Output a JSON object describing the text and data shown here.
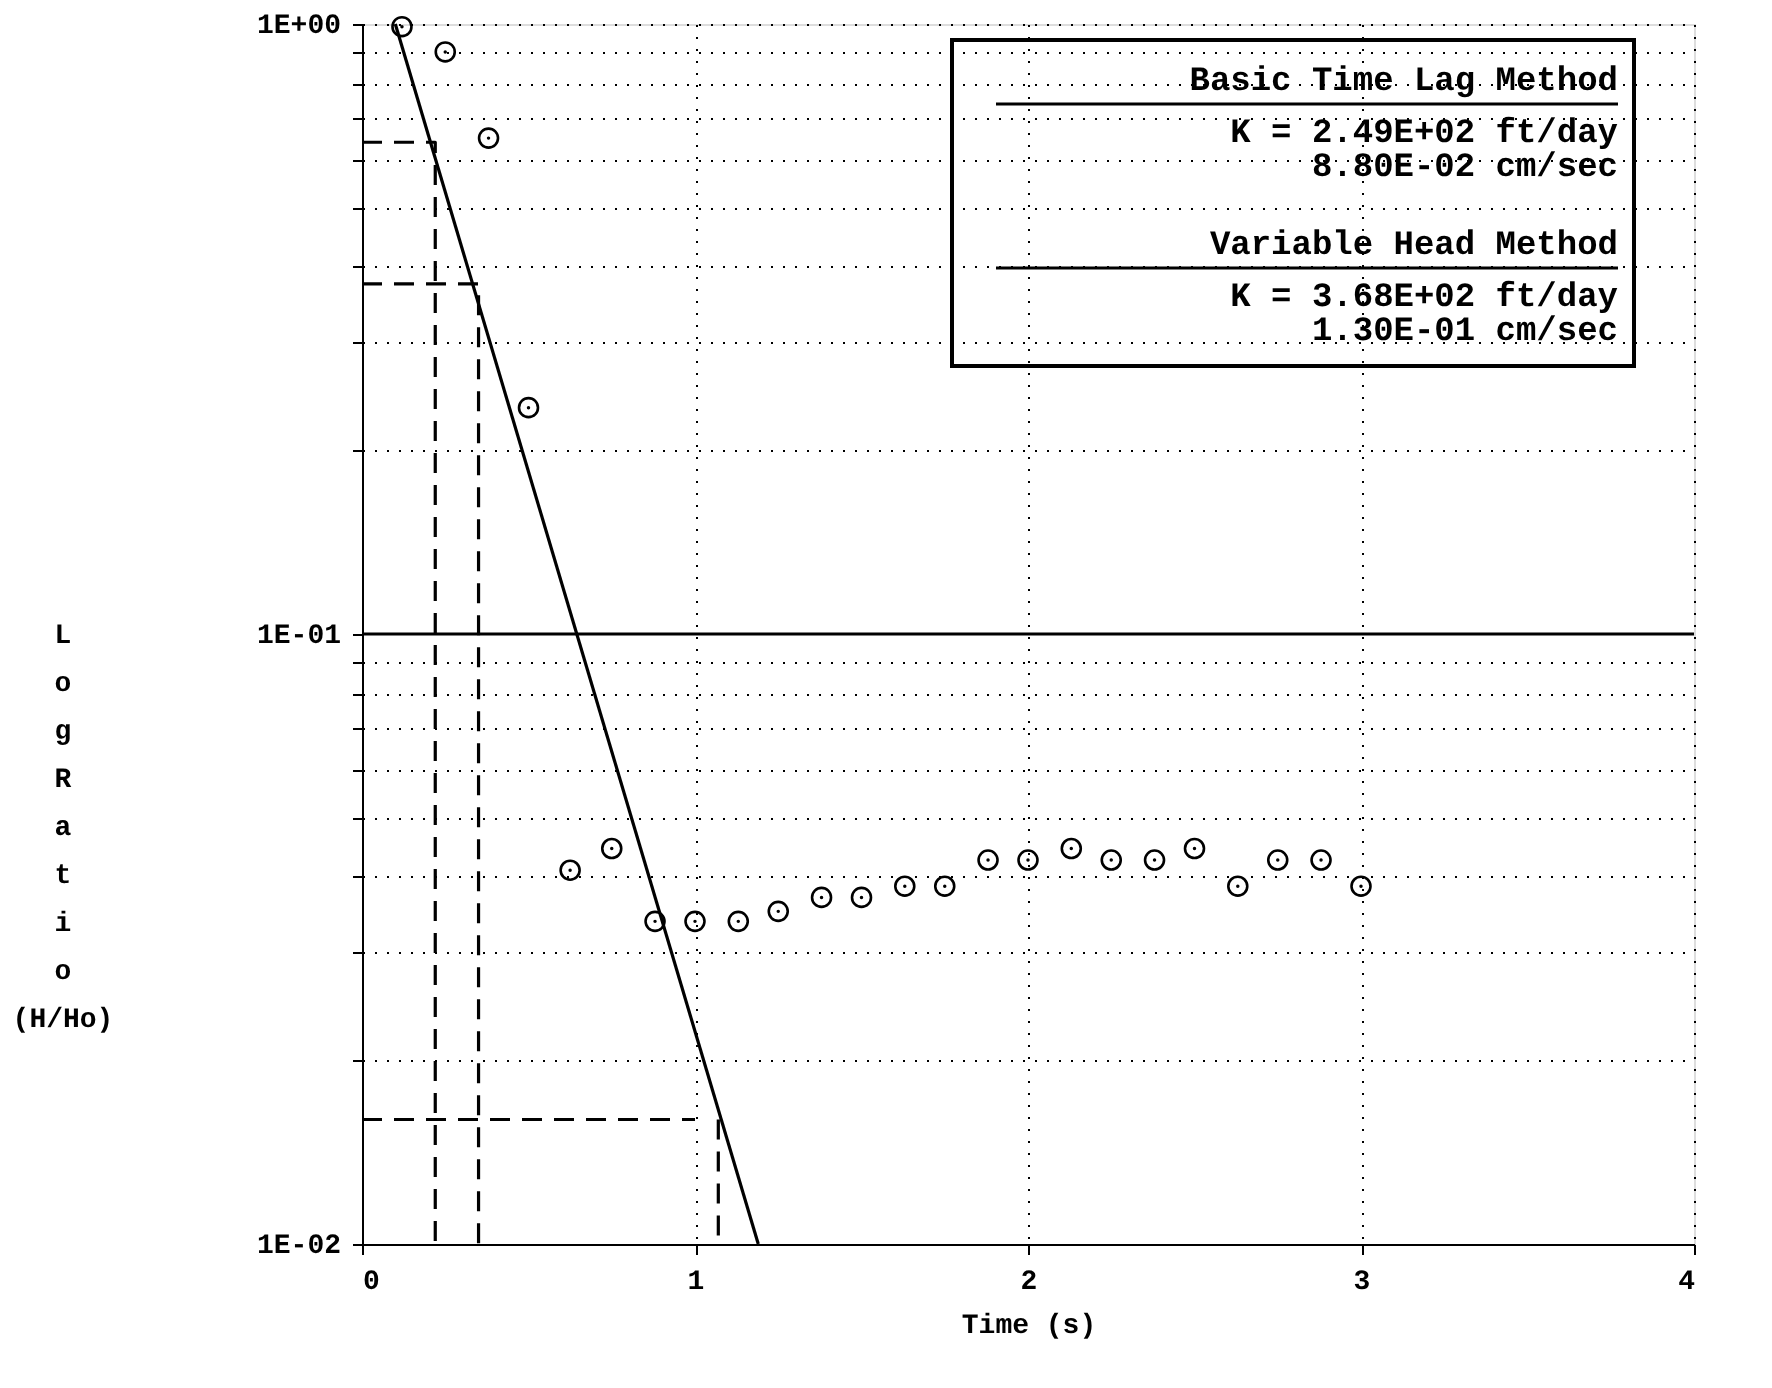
{
  "chart_data": {
    "type": "scatter",
    "xlabel": "Time (s)",
    "ylabel": "Log Ratio (H/Ho)",
    "log": "y",
    "xlim": [
      0,
      4
    ],
    "xticks": [
      0,
      1,
      2,
      3,
      4
    ],
    "ylim": [
      0.01,
      1
    ],
    "yticks": [
      {
        "value": 0.01,
        "label": "1E-02"
      },
      {
        "value": 0.02,
        "label": null
      },
      {
        "value": 0.03,
        "label": null
      },
      {
        "value": 0.04,
        "label": null
      },
      {
        "value": 0.05,
        "label": null
      },
      {
        "value": 0.06,
        "label": null
      },
      {
        "value": 0.07,
        "label": null
      },
      {
        "value": 0.08,
        "label": null
      },
      {
        "value": 0.09,
        "label": null
      },
      {
        "value": 0.1,
        "label": "1E-01"
      },
      {
        "value": 0.2,
        "label": null
      },
      {
        "value": 0.3,
        "label": null
      },
      {
        "value": 0.4,
        "label": null
      },
      {
        "value": 0.5,
        "label": null
      },
      {
        "value": 0.6,
        "label": null
      },
      {
        "value": 0.7,
        "label": null
      },
      {
        "value": 0.8,
        "label": null
      },
      {
        "value": 0.9,
        "label": null
      },
      {
        "value": 1,
        "label": "1E+00"
      }
    ],
    "grid": true,
    "marker": "circle",
    "ref_lines": [
      {
        "axis": "y",
        "value": 0.1,
        "label": null,
        "color": "#000000",
        "line_style": "solid"
      }
    ],
    "annotations": [
      "Basic Time Lag Method",
      "K =   2.49E+02 ft/day",
      "8.80E-02 cm/sec",
      "Variable Head Method",
      "K =   3.68E+02 ft/day",
      "1.30E-01 cm/sec"
    ],
    "series": [
      {
        "color": "#000000",
        "x": [
          0.12,
          0.25,
          0.38,
          0.5,
          0.625,
          0.75,
          0.88,
          1.0,
          1.13,
          1.25,
          1.38,
          1.5,
          1.63,
          1.75,
          1.88,
          2.0,
          2.13,
          2.25,
          2.38,
          2.5,
          2.63,
          2.75,
          2.88,
          3.0
        ],
        "values": [
          0.99,
          0.9,
          0.65,
          0.235,
          0.041,
          0.0445,
          0.0338,
          0.0338,
          0.0338,
          0.0351,
          0.037,
          0.037,
          0.0386,
          0.0386,
          0.0426,
          0.0426,
          0.0445,
          0.0426,
          0.0426,
          0.0445,
          0.0386,
          0.0426,
          0.0426,
          0.0386
        ]
      },
      {
        "type": "line",
        "color": "#000000",
        "line_style": "solid",
        "marker": "none",
        "x": [
          0.1,
          1.19
        ],
        "values": [
          1,
          0.01
        ]
      },
      {
        "type": "line",
        "color": "#000000",
        "line_style": "dashed",
        "marker": "none",
        "x": [
          0,
          0.22,
          0.22
        ],
        "values": [
          0.64,
          0.64,
          0.01
        ]
      },
      {
        "type": "line",
        "color": "#000000",
        "line_style": "dashed",
        "marker": "none",
        "x": [
          0,
          0.35,
          0.35
        ],
        "values": [
          0.375,
          0.375,
          0.01
        ]
      },
      {
        "type": "line",
        "color": "#000000",
        "line_style": "dashed",
        "marker": "none",
        "x": [
          0,
          1.0
        ],
        "values": [
          0.016,
          0.016
        ]
      },
      {
        "type": "line",
        "color": "#000000",
        "line_style": "dashed",
        "marker": "none",
        "x": [
          1.07,
          1.07
        ],
        "values": [
          0.016,
          0.01
        ]
      }
    ]
  }
}
